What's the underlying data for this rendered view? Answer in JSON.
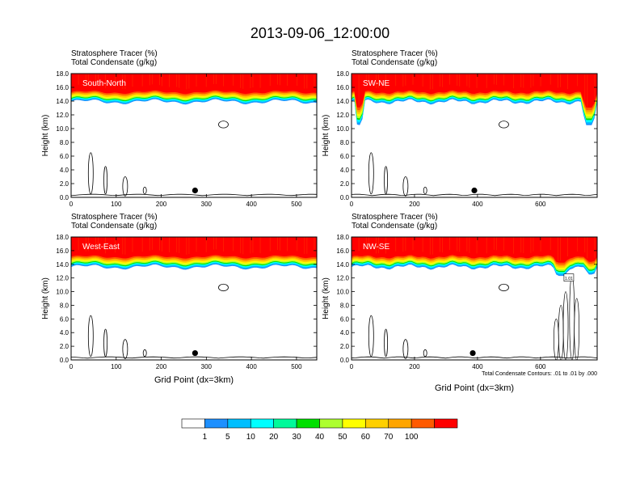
{
  "title": "2013-09-06_12:00:00",
  "footnote": "Total Condensate Contours: .01 to .01 by .000",
  "colorbar": {
    "labels": [
      "1",
      "5",
      "10",
      "20",
      "30",
      "40",
      "50",
      "60",
      "70",
      "100"
    ],
    "colors": [
      "#ffffff",
      "#1e90ff",
      "#00bfff",
      "#00ffff",
      "#00fa9a",
      "#00e000",
      "#adff2f",
      "#ffff00",
      "#ffd000",
      "#ffa500",
      "#ff5a00",
      "#ff0000"
    ]
  },
  "contour_label": "1.01",
  "chart_data": [
    {
      "type": "heatmap",
      "panel_label": "South-North",
      "subtitle_1": "Stratosphere Tracer   (%)",
      "subtitle_2": "Total Condensate   (g/kg)",
      "ylabel": "Height (km)",
      "xlabel": "",
      "xlim": [
        0,
        545
      ],
      "ylim": [
        0,
        18
      ],
      "xticks": [
        0,
        100,
        200,
        300,
        400,
        500
      ],
      "yticks": [
        "0.0",
        "2.0",
        "4.0",
        "6.0",
        "8.0",
        "10.0",
        "12.0",
        "14.0",
        "16.0",
        "18.0"
      ],
      "marker_x": 275,
      "tropopause_base_km": 13.9,
      "dips": []
    },
    {
      "type": "heatmap",
      "panel_label": "SW-NE",
      "subtitle_1": "Stratosphere Tracer   (%)",
      "subtitle_2": "Total Condensate   (g/kg)",
      "ylabel": "Height (km)",
      "xlabel": "",
      "xlim": [
        0,
        780
      ],
      "ylim": [
        0,
        18
      ],
      "xticks": [
        0,
        200,
        400,
        600
      ],
      "yticks": [
        "0.0",
        "2.0",
        "4.0",
        "6.0",
        "8.0",
        "10.0",
        "12.0",
        "14.0",
        "16.0",
        "18.0"
      ],
      "marker_x": 390,
      "tropopause_base_km": 13.9,
      "dips": [
        {
          "x0": 10,
          "x1": 40,
          "z": 10.5
        },
        {
          "x0": 730,
          "x1": 780,
          "z": 10.5
        }
      ]
    },
    {
      "type": "heatmap",
      "panel_label": "West-East",
      "subtitle_1": "Stratosphere Tracer   (%)",
      "subtitle_2": "Total Condensate   (g/kg)",
      "ylabel": "Height (km)",
      "xlabel": "Grid Point (dx=3km)",
      "xlim": [
        0,
        545
      ],
      "ylim": [
        0,
        18
      ],
      "xticks": [
        0,
        100,
        200,
        300,
        400,
        500
      ],
      "yticks": [
        "0.0",
        "2.0",
        "4.0",
        "6.0",
        "8.0",
        "10.0",
        "12.0",
        "14.0",
        "16.0",
        "18.0"
      ],
      "marker_x": 275,
      "tropopause_base_km": 13.6,
      "dips": []
    },
    {
      "type": "heatmap",
      "panel_label": "NW-SE",
      "subtitle_1": "Stratosphere Tracer   (%)",
      "subtitle_2": "Total Condensate   (g/kg)",
      "ylabel": "Height (km)",
      "xlabel": "Grid Point (dx=3km)",
      "xlim": [
        0,
        780
      ],
      "ylim": [
        0,
        18
      ],
      "xticks": [
        0,
        200,
        400,
        600
      ],
      "yticks": [
        "0.0",
        "2.0",
        "4.0",
        "6.0",
        "8.0",
        "10.0",
        "12.0",
        "14.0",
        "16.0",
        "18.0"
      ],
      "marker_x": 385,
      "tropopause_base_km": 13.6,
      "dips": [
        {
          "x0": 640,
          "x1": 690,
          "z": 12.3
        },
        {
          "x0": 740,
          "x1": 780,
          "z": 12.5
        }
      ]
    }
  ]
}
